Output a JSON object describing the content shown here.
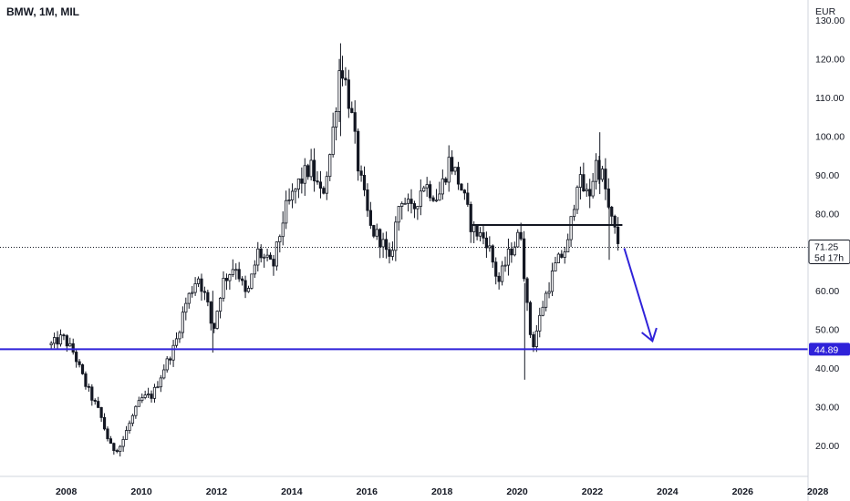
{
  "chart_data": {
    "type": "candlestick",
    "title": "BMW, 1M, MIL",
    "currency": "EUR",
    "y_ticks": [
      20,
      30,
      40,
      50,
      60,
      70,
      80,
      90,
      100,
      110,
      120,
      130
    ],
    "y_tick_labels": [
      "20.00",
      "30.00",
      "40.00",
      "50.00",
      "60.00",
      "70.00",
      "80.00",
      "90.00",
      "100.00",
      "110.00",
      "120.00",
      "130.00"
    ],
    "x_ticks": [
      2008,
      2010,
      2012,
      2014,
      2016,
      2018,
      2020,
      2022,
      2024,
      2026,
      2028
    ],
    "x_tick_labels": [
      "2008",
      "2010",
      "2012",
      "2014",
      "2016",
      "2018",
      "2020",
      "2022",
      "2024",
      "2026",
      "2028"
    ],
    "ylim": [
      13,
      133
    ],
    "xlim": [
      2007.0,
      2028.3
    ],
    "grid": false,
    "colors": {
      "candle": "#131722",
      "support": "#2f22d9",
      "arrow": "#2f22d9",
      "resistance": "#131722",
      "last_price_line": "#131722"
    },
    "last_price": {
      "value": 71.25,
      "label": "71.25",
      "countdown": "5d 17h"
    },
    "support_line": {
      "value": 44.89,
      "label": "44.89"
    },
    "resistance_line": {
      "value": 77,
      "x_start": 2018.8,
      "x_end": 2022.8
    },
    "arrow": {
      "x_start": 2022.85,
      "y_start": 71,
      "x_end": 2023.6,
      "y_end": 47
    },
    "path_anchors": [
      [
        2007.6,
        46
      ],
      [
        2007.9,
        48
      ],
      [
        2008.2,
        44
      ],
      [
        2008.5,
        36
      ],
      [
        2008.9,
        28
      ],
      [
        2009.2,
        19
      ],
      [
        2009.45,
        20
      ],
      [
        2009.7,
        26
      ],
      [
        2010.0,
        32
      ],
      [
        2010.3,
        33
      ],
      [
        2010.6,
        40
      ],
      [
        2010.9,
        46
      ],
      [
        2011.15,
        56
      ],
      [
        2011.5,
        64
      ],
      [
        2011.75,
        57
      ],
      [
        2011.9,
        49
      ],
      [
        2012.15,
        62
      ],
      [
        2012.5,
        67
      ],
      [
        2012.8,
        58
      ],
      [
        2013.1,
        70
      ],
      [
        2013.5,
        66
      ],
      [
        2013.8,
        80
      ],
      [
        2014.2,
        88
      ],
      [
        2014.5,
        92
      ],
      [
        2014.8,
        84
      ],
      [
        2015.05,
        97
      ],
      [
        2015.3,
        120
      ],
      [
        2015.55,
        108
      ],
      [
        2015.8,
        90
      ],
      [
        2016.1,
        76
      ],
      [
        2016.4,
        73
      ],
      [
        2016.6,
        67
      ],
      [
        2016.9,
        85
      ],
      [
        2017.2,
        80
      ],
      [
        2017.5,
        88
      ],
      [
        2017.9,
        84
      ],
      [
        2018.2,
        94
      ],
      [
        2018.5,
        87
      ],
      [
        2018.8,
        76
      ],
      [
        2019.2,
        73
      ],
      [
        2019.5,
        62
      ],
      [
        2019.8,
        70
      ],
      [
        2020.1,
        75
      ],
      [
        2020.25,
        57
      ],
      [
        2020.4,
        45
      ],
      [
        2020.7,
        57
      ],
      [
        2021.0,
        66
      ],
      [
        2021.35,
        72
      ],
      [
        2021.6,
        89
      ],
      [
        2021.9,
        84
      ],
      [
        2022.1,
        93
      ],
      [
        2022.3,
        89
      ],
      [
        2022.45,
        80
      ],
      [
        2022.7,
        72
      ]
    ]
  }
}
